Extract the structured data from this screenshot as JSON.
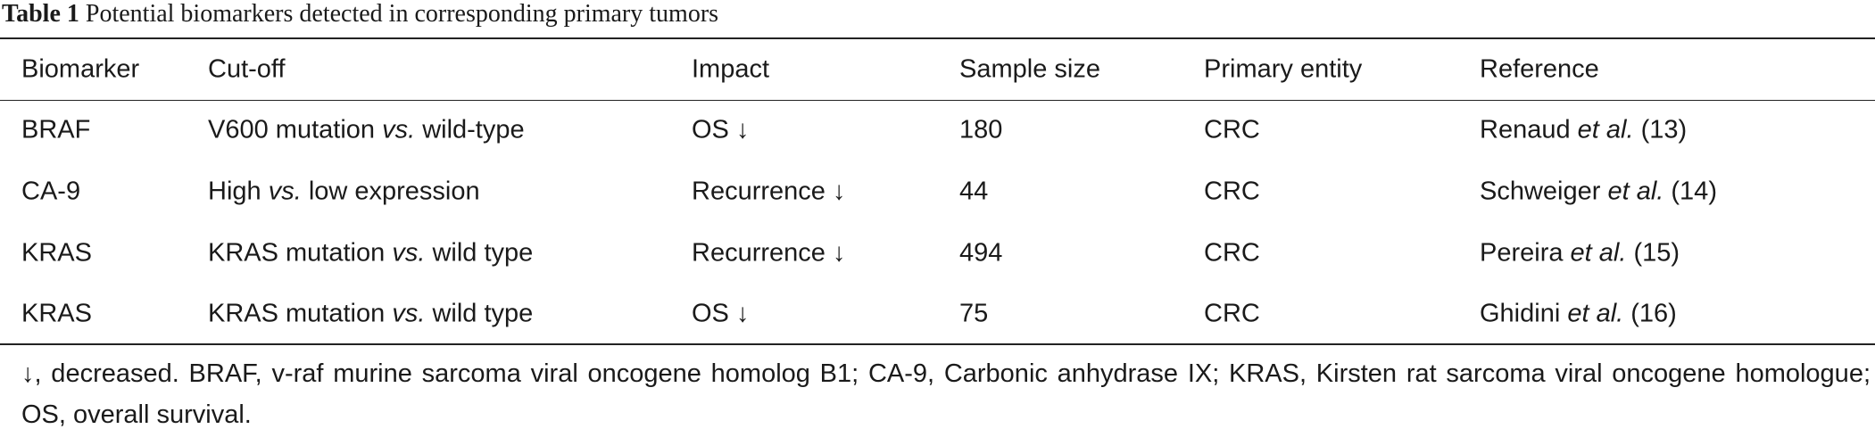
{
  "caption": {
    "label": "Table 1",
    "text": "Potential biomarkers detected in corresponding primary tumors"
  },
  "table": {
    "header": [
      "Biomarker",
      "Cut-off",
      "Impact",
      "Sample size",
      "Primary entity",
      "Reference"
    ],
    "rows": [
      [
        "BRAF",
        [
          "V600 mutation ",
          "vs.",
          " wild-type"
        ],
        "OS ↓",
        180,
        "CRC",
        [
          "Renaud ",
          "et al.",
          " (13)"
        ]
      ],
      [
        "CA-9",
        [
          "High ",
          "vs.",
          " low expression"
        ],
        "Recurrence ↓",
        44,
        "CRC",
        [
          "Schweiger ",
          "et al.",
          " (14)"
        ]
      ],
      [
        "KRAS",
        [
          "KRAS mutation ",
          "vs.",
          " wild type"
        ],
        "Recurrence ↓",
        494,
        "CRC",
        [
          "Pereira ",
          "et al.",
          " (15)"
        ]
      ],
      [
        "KRAS",
        [
          "KRAS mutation ",
          "vs.",
          " wild type"
        ],
        "OS ↓",
        75,
        "CRC",
        [
          "Ghidini ",
          "et al.",
          " (16)"
        ]
      ]
    ]
  },
  "footnote": "↓, decreased. BRAF, v-raf murine sarcoma viral oncogene homolog B1; CA-9, Carbonic anhydrase IX; KRAS, Kirsten rat sarcoma viral oncogene homologue; OS, overall survival."
}
